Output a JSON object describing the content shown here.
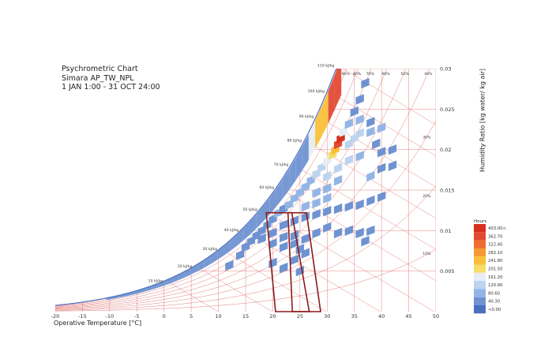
{
  "chart_data": {
    "type": "heatmap",
    "title": [
      "Psychrometric Chart",
      "Simara AP_TW_NPL",
      "1 JAN 1:00 - 31 OCT 24:00"
    ],
    "xlabel": "Operative Temperature [°C]",
    "ylabel": "Humidity Ratio [kg water/ kg air]",
    "xlim": [
      -20,
      50
    ],
    "ylim": [
      0,
      0.03
    ],
    "x_ticks": [
      -20,
      -15,
      -10,
      -5,
      0,
      5,
      10,
      15,
      20,
      25,
      30,
      35,
      40,
      45,
      50
    ],
    "y_ticks": [
      0.005,
      0.01,
      0.015,
      0.02,
      0.025,
      0.03
    ],
    "y_tick_labels": [
      "0.005",
      "0.01",
      "0.015",
      "0.02",
      "0.025",
      "0.03"
    ],
    "enthalpy_lines": [
      10,
      20,
      30,
      40,
      50,
      60,
      70,
      80,
      90,
      100,
      110
    ],
    "enthalpy_labels": [
      "10 kJ/kg",
      "20 kJ/kg",
      "30 kJ/kg",
      "40 kJ/kg",
      "50 kJ/kg",
      "60 kJ/kg",
      "70 kJ/kg",
      "80 kJ/kg",
      "90 kJ/kg",
      "100 kJ/kg",
      "110 kJ/kg"
    ],
    "rh_lines": [
      10,
      20,
      30,
      40,
      50,
      60,
      70,
      80,
      90
    ],
    "rh_labels": [
      "10%",
      "20%",
      "30%",
      "40%",
      "50%",
      "60%",
      "70%",
      "80%",
      "90%"
    ],
    "legend": {
      "title": "Hours",
      "labels": [
        "403.00<",
        "362.70",
        "322.40",
        "282.10",
        "241.80",
        "201.50",
        "161.20",
        "120.90",
        "80.60",
        "40.30",
        "<0.00"
      ],
      "colors": [
        "#d7301f",
        "#e34a33",
        "#ef6e2f",
        "#f59a33",
        "#fbc03a",
        "#f5dd6a",
        "#e6eef4",
        "#bcd4ef",
        "#93b5e6",
        "#6f93d2",
        "#4a6fbf"
      ]
    },
    "comfort_zones": [
      {
        "name": "zone-1",
        "polygon_data": [
          [
            20.5,
            0.0
          ],
          [
            26.7,
            0.0
          ],
          [
            23.5,
            0.0122
          ],
          [
            18.8,
            0.0122
          ]
        ]
      },
      {
        "name": "zone-2",
        "polygon_data": [
          [
            23.6,
            0.0
          ],
          [
            28.8,
            0.0
          ],
          [
            26.2,
            0.0122
          ],
          [
            22.8,
            0.0122
          ]
        ]
      }
    ],
    "cells": [
      {
        "t": 12,
        "w": 0.0055,
        "v": 30
      },
      {
        "t": 14,
        "w": 0.0068,
        "v": 35
      },
      {
        "t": 15,
        "w": 0.0078,
        "v": 40
      },
      {
        "t": 16,
        "w": 0.0085,
        "v": 45
      },
      {
        "t": 17,
        "w": 0.0092,
        "v": 50
      },
      {
        "t": 18,
        "w": 0.0098,
        "v": 60
      },
      {
        "t": 19,
        "w": 0.0105,
        "v": 55
      },
      {
        "t": 20,
        "w": 0.0112,
        "v": 60
      },
      {
        "t": 21,
        "w": 0.012,
        "v": 70
      },
      {
        "t": 22,
        "w": 0.0125,
        "v": 60
      },
      {
        "t": 23,
        "w": 0.013,
        "v": 70
      },
      {
        "t": 24,
        "w": 0.0138,
        "v": 80
      },
      {
        "t": 25,
        "w": 0.0145,
        "v": 75
      },
      {
        "t": 26,
        "w": 0.0152,
        "v": 90
      },
      {
        "t": 27,
        "w": 0.016,
        "v": 100
      },
      {
        "t": 28,
        "w": 0.0168,
        "v": 110
      },
      {
        "t": 29,
        "w": 0.0176,
        "v": 130
      },
      {
        "t": 30,
        "w": 0.0184,
        "v": 160
      },
      {
        "t": 31,
        "w": 0.0192,
        "v": 190
      },
      {
        "t": 31.5,
        "w": 0.0198,
        "v": 260
      },
      {
        "t": 32,
        "w": 0.0205,
        "v": 360
      },
      {
        "t": 32.5,
        "w": 0.0212,
        "v": 400
      },
      {
        "t": 33,
        "w": 0.022,
        "v": 150
      },
      {
        "t": 34,
        "w": 0.023,
        "v": 100
      },
      {
        "t": 35,
        "w": 0.0245,
        "v": 60
      },
      {
        "t": 36,
        "w": 0.026,
        "v": 40
      },
      {
        "t": 37,
        "w": 0.028,
        "v": 30
      },
      {
        "t": 30,
        "w": 0.0165,
        "v": 120
      },
      {
        "t": 32,
        "w": 0.0175,
        "v": 140
      },
      {
        "t": 34,
        "w": 0.0185,
        "v": 120
      },
      {
        "t": 36,
        "w": 0.019,
        "v": 100
      },
      {
        "t": 34,
        "w": 0.0205,
        "v": 130
      },
      {
        "t": 35,
        "w": 0.0212,
        "v": 140
      },
      {
        "t": 36,
        "w": 0.0218,
        "v": 120
      },
      {
        "t": 38,
        "w": 0.022,
        "v": 90
      },
      {
        "t": 40,
        "w": 0.0225,
        "v": 70
      },
      {
        "t": 36,
        "w": 0.0235,
        "v": 80
      },
      {
        "t": 38,
        "w": 0.0232,
        "v": 60
      },
      {
        "t": 28,
        "w": 0.0145,
        "v": 90
      },
      {
        "t": 30,
        "w": 0.015,
        "v": 100
      },
      {
        "t": 32,
        "w": 0.016,
        "v": 100
      },
      {
        "t": 26,
        "w": 0.0128,
        "v": 70
      },
      {
        "t": 28,
        "w": 0.0132,
        "v": 80
      },
      {
        "t": 30,
        "w": 0.0138,
        "v": 70
      },
      {
        "t": 22,
        "w": 0.0105,
        "v": 60
      },
      {
        "t": 24,
        "w": 0.011,
        "v": 60
      },
      {
        "t": 26,
        "w": 0.0115,
        "v": 55
      },
      {
        "t": 20,
        "w": 0.0095,
        "v": 50
      },
      {
        "t": 22,
        "w": 0.009,
        "v": 45
      },
      {
        "t": 24,
        "w": 0.0092,
        "v": 45
      },
      {
        "t": 18,
        "w": 0.0088,
        "v": 40
      },
      {
        "t": 20,
        "w": 0.0082,
        "v": 40
      },
      {
        "t": 22,
        "w": 0.0078,
        "v": 40
      },
      {
        "t": 24,
        "w": 0.0082,
        "v": 45
      },
      {
        "t": 26,
        "w": 0.0088,
        "v": 50
      },
      {
        "t": 28,
        "w": 0.0095,
        "v": 45
      },
      {
        "t": 30,
        "w": 0.0102,
        "v": 50
      },
      {
        "t": 32,
        "w": 0.0095,
        "v": 40
      },
      {
        "t": 34,
        "w": 0.0098,
        "v": 35
      },
      {
        "t": 36,
        "w": 0.0095,
        "v": 30
      },
      {
        "t": 37,
        "w": 0.0085,
        "v": 30
      },
      {
        "t": 38,
        "w": 0.0098,
        "v": 30
      },
      {
        "t": 25,
        "w": 0.0075,
        "v": 40
      },
      {
        "t": 26,
        "w": 0.007,
        "v": 40
      },
      {
        "t": 24,
        "w": 0.0062,
        "v": 35
      },
      {
        "t": 25,
        "w": 0.0048,
        "v": 30
      },
      {
        "t": 22,
        "w": 0.0052,
        "v": 35
      },
      {
        "t": 20,
        "w": 0.0058,
        "v": 30
      },
      {
        "t": 28,
        "w": 0.0118,
        "v": 60
      },
      {
        "t": 30,
        "w": 0.0122,
        "v": 60
      },
      {
        "t": 32,
        "w": 0.0125,
        "v": 55
      },
      {
        "t": 34,
        "w": 0.0128,
        "v": 50
      },
      {
        "t": 36,
        "w": 0.013,
        "v": 45
      },
      {
        "t": 38,
        "w": 0.0135,
        "v": 40
      },
      {
        "t": 40,
        "w": 0.014,
        "v": 35
      },
      {
        "t": 38,
        "w": 0.0165,
        "v": 70
      },
      {
        "t": 40,
        "w": 0.0175,
        "v": 60
      },
      {
        "t": 42,
        "w": 0.0178,
        "v": 50
      },
      {
        "t": 40,
        "w": 0.0195,
        "v": 60
      },
      {
        "t": 42,
        "w": 0.0198,
        "v": 50
      },
      {
        "t": 39,
        "w": 0.0205,
        "v": 60
      }
    ]
  }
}
